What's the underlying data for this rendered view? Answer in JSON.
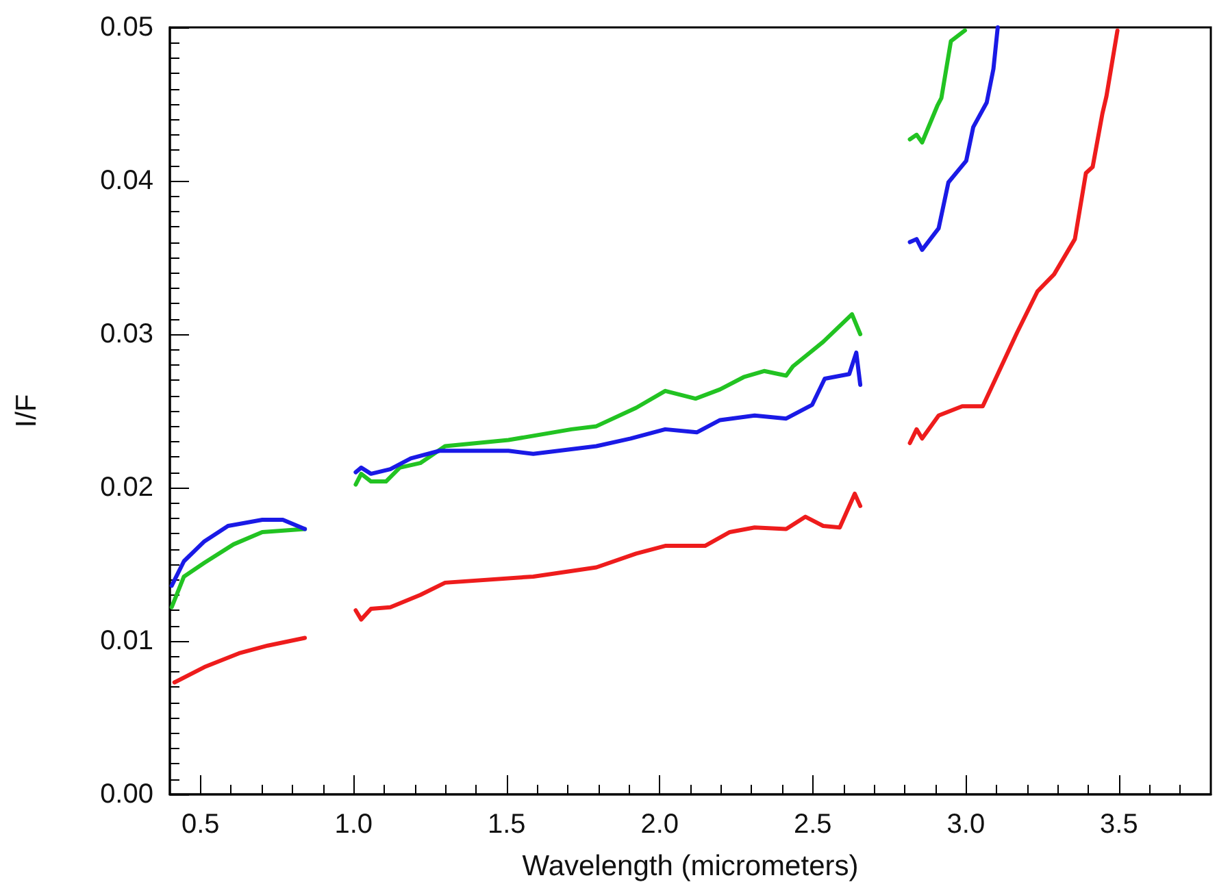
{
  "chart_data": {
    "type": "line",
    "xlabel": "Wavelength (micrometers)",
    "ylabel": "I/F",
    "xlim": [
      0.4,
      3.8
    ],
    "xticks": [
      {
        "value": 0.5,
        "label": "0.5"
      },
      {
        "value": 1,
        "label": "1.0"
      },
      {
        "value": 1.5,
        "label": "1.5"
      },
      {
        "value": 2,
        "label": "2.0"
      },
      {
        "value": 2.5,
        "label": "2.5"
      },
      {
        "value": 3,
        "label": "3.0"
      },
      {
        "value": 3.5,
        "label": "3.5"
      }
    ],
    "ylim": [
      0,
      0.05
    ],
    "yticks": [
      {
        "value": 0,
        "label": "0.00"
      },
      {
        "value": 0.01,
        "label": "0.01"
      },
      {
        "value": 0.02,
        "label": "0.02"
      },
      {
        "value": 0.03,
        "label": "0.03"
      },
      {
        "value": 0.04,
        "label": "0.04"
      },
      {
        "value": 0.05,
        "label": "0.05"
      }
    ],
    "grid": false,
    "marker": "none",
    "line_style": "solid",
    "series": [
      {
        "color": "#22c322",
        "x": [
          0.406,
          0.446,
          0.513,
          0.608,
          0.702,
          0.841,
          0.92,
          1.007,
          1.025,
          1.057,
          1.106,
          1.151,
          1.218,
          1.299,
          1.506,
          1.712,
          1.793,
          1.923,
          2.018,
          2.117,
          2.197,
          2.274,
          2.341,
          2.413,
          2.435,
          2.534,
          2.628,
          2.655,
          2.74,
          2.817,
          2.839,
          2.857,
          2.907,
          2.92,
          2.951,
          2.997
        ],
        "values": [
          0.0122,
          0.0142,
          0.0151,
          0.0163,
          0.0171,
          0.0173,
          null,
          0.0202,
          0.0209,
          0.0204,
          0.0204,
          0.0213,
          0.0216,
          0.0227,
          0.0231,
          0.0238,
          0.024,
          0.0252,
          0.0263,
          0.0258,
          0.0264,
          0.0272,
          0.0276,
          0.0273,
          0.0279,
          0.0295,
          0.0313,
          0.03,
          null,
          0.0427,
          0.043,
          0.0425,
          0.0449,
          0.0454,
          0.0491,
          0.0498
        ]
      },
      {
        "color": "#1a1ae6",
        "x": [
          0.406,
          0.446,
          0.513,
          0.59,
          0.702,
          0.769,
          0.841,
          0.92,
          1.007,
          1.025,
          1.057,
          1.12,
          1.187,
          1.281,
          1.506,
          1.587,
          1.793,
          1.905,
          2.018,
          2.121,
          2.197,
          2.31,
          2.413,
          2.498,
          2.539,
          2.619,
          2.642,
          2.655,
          2.74,
          2.817,
          2.839,
          2.857,
          2.911,
          2.943,
          3.001,
          3.024,
          3.068,
          3.09,
          3.104
        ],
        "values": [
          0.0136,
          0.0152,
          0.0165,
          0.0175,
          0.0179,
          0.0179,
          0.0173,
          null,
          0.021,
          0.0213,
          0.0209,
          0.0212,
          0.0219,
          0.0224,
          0.0224,
          0.0222,
          0.0227,
          0.0232,
          0.0238,
          0.0236,
          0.0244,
          0.0247,
          0.0245,
          0.0254,
          0.0271,
          0.0274,
          0.0288,
          0.0267,
          null,
          0.036,
          0.0362,
          0.0355,
          0.0369,
          0.0399,
          0.0413,
          0.0435,
          0.0451,
          0.0473,
          0.05
        ]
      },
      {
        "color": "#ee1c1c",
        "x": [
          0.415,
          0.513,
          0.626,
          0.72,
          0.841,
          0.92,
          1.007,
          1.025,
          1.057,
          1.12,
          1.218,
          1.299,
          1.587,
          1.793,
          1.923,
          2.018,
          2.148,
          2.229,
          2.31,
          2.413,
          2.476,
          2.534,
          2.588,
          2.637,
          2.655,
          2.74,
          2.817,
          2.839,
          2.857,
          2.911,
          2.988,
          3.055,
          3.09,
          3.167,
          3.234,
          3.288,
          3.356,
          3.392,
          3.414,
          3.446,
          3.459,
          3.495
        ],
        "values": [
          0.0073,
          0.0083,
          0.0092,
          0.0097,
          0.0102,
          null,
          0.012,
          0.0114,
          0.0121,
          0.0122,
          0.013,
          0.0138,
          0.0142,
          0.0148,
          0.0157,
          0.0162,
          0.0162,
          0.0171,
          0.0174,
          0.0173,
          0.0181,
          0.0175,
          0.0174,
          0.0196,
          0.0188,
          null,
          0.0229,
          0.0238,
          0.0232,
          0.0247,
          0.0253,
          0.0253,
          0.0268,
          0.0301,
          0.0328,
          0.0339,
          0.0362,
          0.0405,
          0.0409,
          0.0444,
          0.0455,
          0.0498
        ]
      }
    ]
  }
}
